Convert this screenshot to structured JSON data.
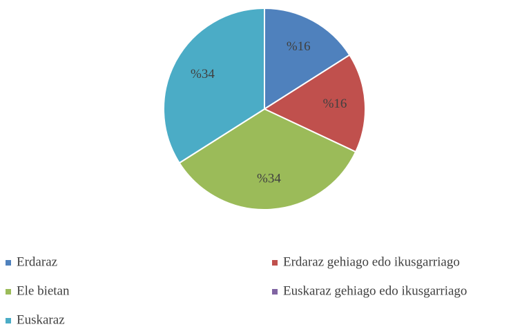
{
  "chart_data": {
    "type": "pie",
    "categories": [
      "Erdaraz",
      "Erdaraz gehiago edo ikusgarriago",
      "Ele bietan",
      "Euskaraz gehiago edo ikusgarriago",
      "Euskaraz"
    ],
    "values": [
      16,
      16,
      34,
      0,
      34
    ],
    "value_labels": [
      "%16",
      "%16",
      "%34",
      null,
      "%34"
    ],
    "colors": [
      "#4f81bd",
      "#c0504d",
      "#9bbb59",
      "#8064a2",
      "#4bacc6"
    ],
    "legend": "bottom"
  }
}
